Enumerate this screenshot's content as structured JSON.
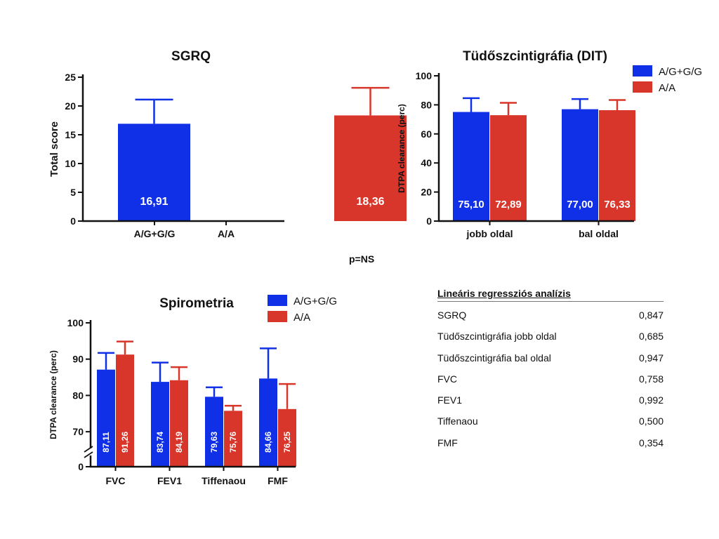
{
  "chart_data": [
    {
      "id": "sgrq",
      "type": "bar",
      "title": "SGRQ",
      "ylabel": "Total score",
      "xlabel": "",
      "ylim": [
        0,
        25
      ],
      "yticks": [
        0,
        5,
        10,
        15,
        20,
        25
      ],
      "categories": [
        "A/G+G/G",
        "A/A"
      ],
      "series": [
        {
          "name": "A/G+G/G",
          "values": [
            16.91,
            null
          ],
          "errors": [
            4.2,
            null
          ],
          "labels": [
            "16,91",
            ""
          ]
        },
        {
          "name": "A/A",
          "values": [
            null,
            18.36
          ],
          "errors": [
            null,
            4.8
          ],
          "labels": [
            "",
            "18,36"
          ]
        }
      ]
    },
    {
      "id": "dit",
      "type": "bar",
      "title": "Tüdőszcintigráfia (DIT)",
      "ylabel": "DTPA clearance (perc)",
      "xlabel": "",
      "ylim": [
        0,
        100
      ],
      "yticks": [
        0,
        20,
        40,
        60,
        80,
        100
      ],
      "categories": [
        "jobb oldal",
        "bal oldal"
      ],
      "legend": [
        "A/G+G/G",
        "A/A"
      ],
      "series": [
        {
          "name": "A/G+G/G",
          "values": [
            75.1,
            77.0
          ],
          "errors": [
            9.5,
            7.0
          ],
          "labels": [
            "75,10",
            "77,00"
          ]
        },
        {
          "name": "A/A",
          "values": [
            72.89,
            76.33
          ],
          "errors": [
            8.5,
            7.0
          ],
          "labels": [
            "72,89",
            "76,33"
          ]
        }
      ]
    },
    {
      "id": "spiro",
      "type": "bar",
      "title": "Spirometria",
      "ylabel": "DTPA clearance (perc)",
      "xlabel": "",
      "ylim": [
        65,
        100
      ],
      "yticks": [
        0,
        70,
        80,
        90,
        100
      ],
      "axis_break": true,
      "categories": [
        "FVC",
        "FEV1",
        "Tiffenaou",
        "FMF"
      ],
      "legend": [
        "A/G+G/G",
        "A/A"
      ],
      "series": [
        {
          "name": "A/G+G/G",
          "values": [
            87.11,
            83.74,
            79.63,
            84.66
          ],
          "errors": [
            4.6,
            5.3,
            2.6,
            8.3
          ],
          "labels": [
            "87,11",
            "83,74",
            "79,63",
            "84,66"
          ]
        },
        {
          "name": "A/A",
          "values": [
            91.26,
            84.19,
            75.76,
            76.25
          ],
          "errors": [
            3.6,
            3.6,
            1.4,
            6.9
          ],
          "labels": [
            "91,26",
            "84,19",
            "75,76",
            "76,25"
          ]
        }
      ]
    }
  ],
  "colors": {
    "blue": "#1030e8",
    "red": "#d8362a"
  },
  "pvalue": "p=NS",
  "regression": {
    "title": "Lineáris regressziós  analízis",
    "rows": [
      {
        "label": "SGRQ",
        "value": "0,847"
      },
      {
        "label": "Tüdőszcintigráfia jobb oldal",
        "value": "0,685"
      },
      {
        "label": "Tüdőszcintigráfia bal oldal",
        "value": "0,947"
      },
      {
        "label": "FVC",
        "value": "0,758"
      },
      {
        "label": "FEV1",
        "value": "0,992"
      },
      {
        "label": "Tiffenaou",
        "value": "0,500"
      },
      {
        "label": "FMF",
        "value": "0,354"
      }
    ]
  }
}
